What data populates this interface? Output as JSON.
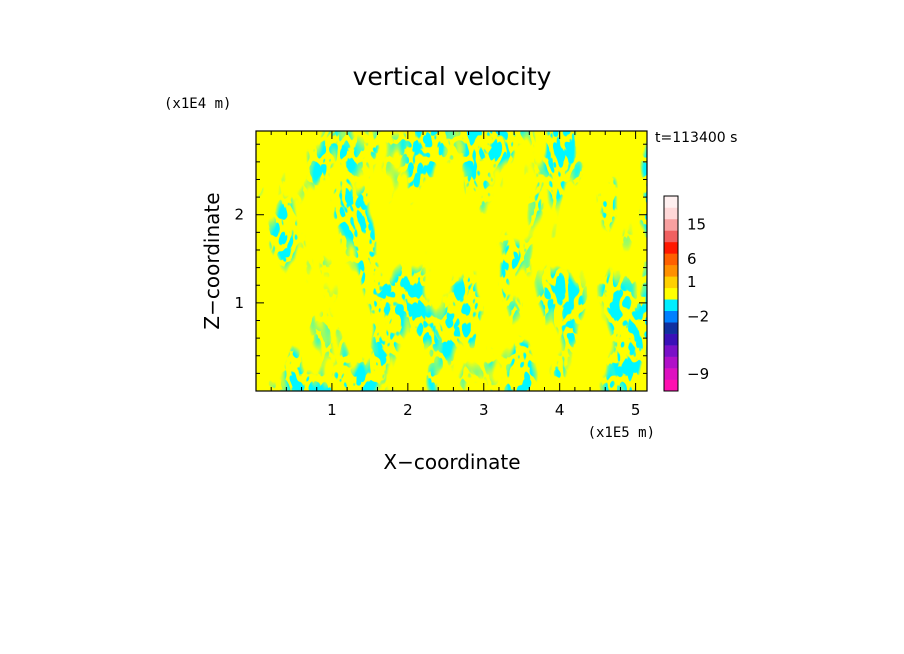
{
  "chart_data": {
    "type": "heatmap",
    "title": "vertical velocity",
    "xlabel": "X−coordinate",
    "ylabel": "Z−coordinate",
    "x_unit": "(x1E5 m)",
    "y_unit": "(x1E4 m)",
    "time_label": "t=113400 s",
    "xlim": [
      0.0,
      5.15
    ],
    "ylim": [
      0.0,
      2.95
    ],
    "x_ticks": [
      {
        "value": 1,
        "label": "1"
      },
      {
        "value": 2,
        "label": "2"
      },
      {
        "value": 3,
        "label": "3"
      },
      {
        "value": 4,
        "label": "4"
      },
      {
        "value": 5,
        "label": "5"
      }
    ],
    "y_ticks": [
      {
        "value": 1,
        "label": "1"
      },
      {
        "value": 2,
        "label": "2"
      }
    ],
    "dominant_colors": {
      "positive": "#ffff00",
      "negative": "#00eeff"
    },
    "colorbar": {
      "levels_bottom_to_top": [
        {
          "color": "#ff10b0"
        },
        {
          "color": "#dd10c0",
          "label": "−9"
        },
        {
          "color": "#b010c8"
        },
        {
          "color": "#7a10c8"
        },
        {
          "color": "#3a10b8"
        },
        {
          "color": "#1030a0"
        },
        {
          "color": "#0080ff",
          "label": "−2"
        },
        {
          "color": "#00eeff"
        },
        {
          "color": "#ffff00"
        },
        {
          "color": "#ffd000",
          "label": "1"
        },
        {
          "color": "#ff9000"
        },
        {
          "color": "#ff6000",
          "label": "6"
        },
        {
          "color": "#ff1800"
        },
        {
          "color": "#f06060"
        },
        {
          "color": "#f8a0a0",
          "label": "15"
        },
        {
          "color": "#ffd8d8"
        },
        {
          "color": "#fff0f0"
        }
      ]
    }
  }
}
